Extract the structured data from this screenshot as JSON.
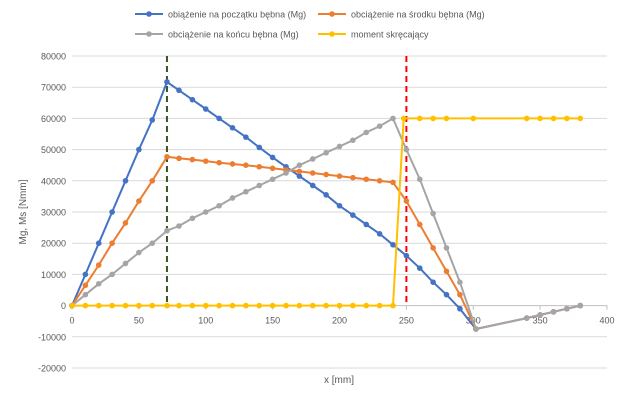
{
  "chart_data": {
    "type": "scatter",
    "xlabel": "x [mm]",
    "ylabel": "Mg, Ms [Nmm]",
    "xlim": [
      0,
      400
    ],
    "ylim": [
      -20000,
      80000
    ],
    "xticks": [
      0,
      50,
      100,
      150,
      200,
      250,
      300,
      350,
      400
    ],
    "yticks": [
      -20000,
      -10000,
      0,
      10000,
      20000,
      30000,
      40000,
      50000,
      60000,
      70000,
      80000
    ],
    "grid": "horizontal",
    "legend": "top",
    "series": [
      {
        "name": "obiążenie na początku bębna (Mg)",
        "color": "#4472C4",
        "points": [
          [
            0,
            0
          ],
          [
            10,
            10000
          ],
          [
            20,
            20000
          ],
          [
            30,
            30000
          ],
          [
            40,
            40000
          ],
          [
            50,
            50000
          ],
          [
            60,
            59500
          ],
          [
            71,
            71700
          ],
          [
            80,
            69000
          ],
          [
            90,
            66000
          ],
          [
            100,
            63000
          ],
          [
            110,
            60000
          ],
          [
            120,
            57000
          ],
          [
            130,
            54000
          ],
          [
            140,
            50700
          ],
          [
            150,
            47500
          ],
          [
            160,
            44500
          ],
          [
            170,
            41500
          ],
          [
            180,
            38500
          ],
          [
            190,
            35500
          ],
          [
            200,
            32000
          ],
          [
            210,
            29000
          ],
          [
            220,
            26000
          ],
          [
            230,
            23000
          ],
          [
            240,
            19500
          ],
          [
            250,
            16000
          ],
          [
            260,
            12000
          ],
          [
            270,
            7500
          ],
          [
            280,
            3500
          ],
          [
            290,
            -1000
          ],
          [
            302,
            -7500
          ],
          [
            340,
            -4000
          ],
          [
            350,
            -3000
          ],
          [
            360,
            -2000
          ],
          [
            370,
            -1000
          ],
          [
            380,
            0
          ]
        ]
      },
      {
        "name": "obciążenie na środku bębna (Mg)",
        "color": "#ED7D31",
        "points": [
          [
            0,
            0
          ],
          [
            10,
            6500
          ],
          [
            20,
            13000
          ],
          [
            30,
            20000
          ],
          [
            40,
            26500
          ],
          [
            50,
            33500
          ],
          [
            60,
            40000
          ],
          [
            71,
            47700
          ],
          [
            80,
            47200
          ],
          [
            90,
            46800
          ],
          [
            100,
            46300
          ],
          [
            110,
            45800
          ],
          [
            120,
            45400
          ],
          [
            130,
            45000
          ],
          [
            140,
            44500
          ],
          [
            150,
            44000
          ],
          [
            160,
            43500
          ],
          [
            170,
            43000
          ],
          [
            180,
            42500
          ],
          [
            190,
            42000
          ],
          [
            200,
            41500
          ],
          [
            210,
            41000
          ],
          [
            220,
            40500
          ],
          [
            230,
            40000
          ],
          [
            240,
            39500
          ],
          [
            250,
            33500
          ],
          [
            260,
            26000
          ],
          [
            270,
            18500
          ],
          [
            280,
            11000
          ],
          [
            290,
            3500
          ],
          [
            302,
            -7500
          ],
          [
            340,
            -4000
          ],
          [
            350,
            -3000
          ],
          [
            360,
            -2000
          ],
          [
            370,
            -1000
          ],
          [
            380,
            0
          ]
        ]
      },
      {
        "name": "obciążenie na końcu bębna (Mg)",
        "color": "#A5A5A5",
        "points": [
          [
            0,
            0
          ],
          [
            10,
            3500
          ],
          [
            20,
            7000
          ],
          [
            30,
            10000
          ],
          [
            40,
            13500
          ],
          [
            50,
            17000
          ],
          [
            60,
            20000
          ],
          [
            71,
            24000
          ],
          [
            80,
            25500
          ],
          [
            90,
            28000
          ],
          [
            100,
            30000
          ],
          [
            110,
            32000
          ],
          [
            120,
            34500
          ],
          [
            130,
            36500
          ],
          [
            140,
            38500
          ],
          [
            150,
            40500
          ],
          [
            160,
            42500
          ],
          [
            170,
            45000
          ],
          [
            180,
            47000
          ],
          [
            190,
            49000
          ],
          [
            200,
            51000
          ],
          [
            210,
            53000
          ],
          [
            220,
            55500
          ],
          [
            230,
            57500
          ],
          [
            240,
            60000
          ],
          [
            250,
            50000
          ],
          [
            260,
            40500
          ],
          [
            270,
            29500
          ],
          [
            280,
            18500
          ],
          [
            290,
            7500
          ],
          [
            302,
            -7500
          ],
          [
            340,
            -4000
          ],
          [
            350,
            -3000
          ],
          [
            360,
            -2000
          ],
          [
            370,
            -1000
          ],
          [
            380,
            0
          ]
        ]
      },
      {
        "name": "moment skręcający",
        "color": "#FFC000",
        "points": [
          [
            0,
            0
          ],
          [
            10,
            0
          ],
          [
            20,
            0
          ],
          [
            30,
            0
          ],
          [
            40,
            0
          ],
          [
            50,
            0
          ],
          [
            60,
            0
          ],
          [
            71,
            0
          ],
          [
            80,
            0
          ],
          [
            90,
            0
          ],
          [
            100,
            0
          ],
          [
            110,
            0
          ],
          [
            120,
            0
          ],
          [
            130,
            0
          ],
          [
            140,
            0
          ],
          [
            150,
            0
          ],
          [
            160,
            0
          ],
          [
            170,
            0
          ],
          [
            180,
            0
          ],
          [
            190,
            0
          ],
          [
            200,
            0
          ],
          [
            210,
            0
          ],
          [
            220,
            0
          ],
          [
            230,
            0
          ],
          [
            240,
            0
          ],
          [
            248,
            60000
          ],
          [
            260,
            60000
          ],
          [
            270,
            60000
          ],
          [
            280,
            60000
          ],
          [
            300,
            60000
          ],
          [
            340,
            60000
          ],
          [
            350,
            60000
          ],
          [
            360,
            60000
          ],
          [
            370,
            60000
          ],
          [
            380,
            60000
          ]
        ]
      }
    ],
    "reference_lines": [
      {
        "x": 71,
        "color": "#375623",
        "style": "dashed"
      },
      {
        "x": 250,
        "color": "#FF0000",
        "style": "dashed"
      }
    ]
  }
}
